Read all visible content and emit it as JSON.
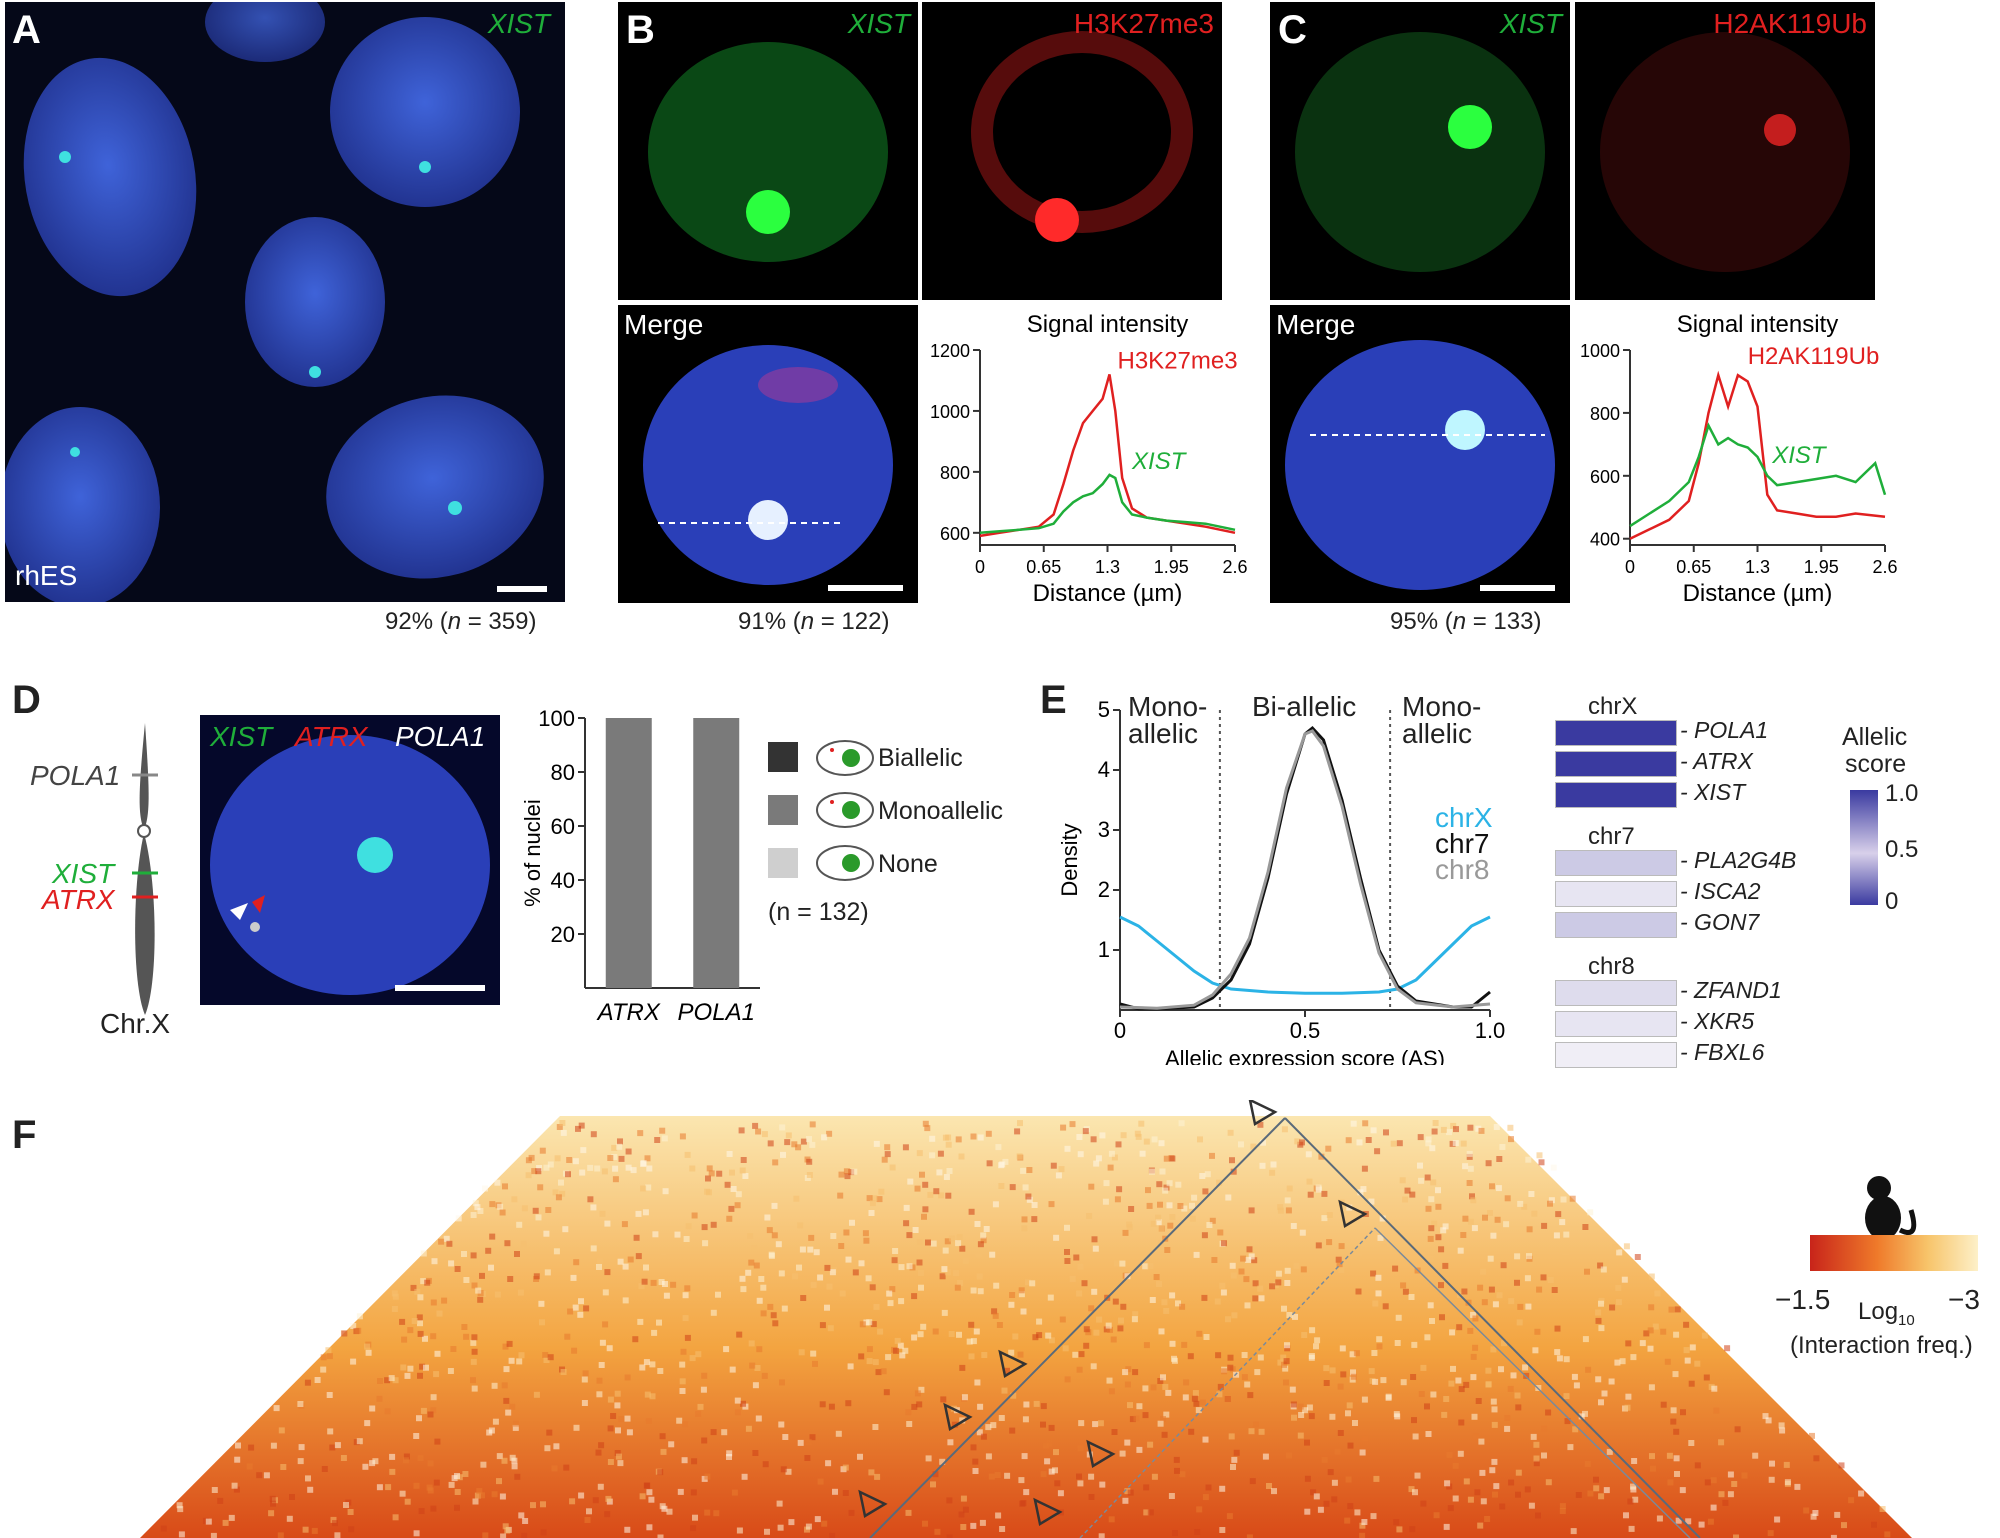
{
  "panels": {
    "A": {
      "letter": "A",
      "marker": "XIST",
      "cell_label": "rhES",
      "stat_pre": "92% (",
      "stat_n": "n",
      "stat_post": " = 359)"
    },
    "B": {
      "letter": "B",
      "marker1": "XIST",
      "marker2": "H3K27me3",
      "merge": "Merge",
      "stat_pre": "91% (",
      "stat_n": "n",
      "stat_post": " = 122)"
    },
    "C": {
      "letter": "C",
      "marker1": "XIST",
      "marker2": "H2AK119Ub",
      "merge": "Merge",
      "stat_pre": "95% (",
      "stat_n": "n",
      "stat_post": " = 133)"
    },
    "D": {
      "letter": "D",
      "genes": [
        "POLA1",
        "XIST",
        "ATRX"
      ],
      "chrom": "Chr.X",
      "fish_labels": [
        "XIST",
        "ATRX",
        "POLA1"
      ],
      "legend": [
        "Biallelic",
        "Monoallelic",
        "None"
      ],
      "legend_n": "(n = 132)"
    },
    "E": {
      "letter": "E",
      "regions": [
        "Mono-",
        "allelic",
        "Bi-allelic",
        "Mono-",
        "allelic"
      ],
      "legend_series": [
        "chrX",
        "chr7",
        "chr8"
      ],
      "colorbar_title": [
        "Allelic",
        "score"
      ],
      "colorbar_ticks": [
        "1.0",
        "0.5",
        "0"
      ]
    },
    "F": {
      "letter": "F",
      "cb_min": "−1.5",
      "cb_max": "−3",
      "cb_title": "Log",
      "cb_sub": "10",
      "cb_caption": "(Interaction freq.)"
    }
  },
  "colors": {
    "xist_green": "#1fae3a",
    "mark_red": "#e02020",
    "chrX_blue": "#2bb3e6",
    "dapi_blue": "#2a3fb8"
  },
  "chart_data": [
    {
      "id": "B-profile",
      "type": "line",
      "title": "Signal intensity",
      "xlabel": "Distance (µm)",
      "ylabel": "",
      "xlim": [
        0,
        2.6
      ],
      "ylim": [
        560,
        1200
      ],
      "xticks": [
        "0",
        "0.65",
        "1.3",
        "1.95",
        "2.6"
      ],
      "yticks": [
        "600",
        "800",
        "1000",
        "1200"
      ],
      "series": [
        {
          "name": "H3K27me3",
          "color": "#e02020",
          "x": [
            0,
            0.2,
            0.4,
            0.6,
            0.75,
            0.85,
            0.95,
            1.05,
            1.15,
            1.25,
            1.32,
            1.38,
            1.45,
            1.55,
            1.7,
            1.9,
            2.1,
            2.3,
            2.6
          ],
          "y": [
            590,
            600,
            610,
            620,
            660,
            760,
            870,
            960,
            1000,
            1040,
            1120,
            1000,
            780,
            680,
            650,
            640,
            630,
            620,
            600
          ]
        },
        {
          "name": "XIST",
          "color": "#1fae3a",
          "x": [
            0,
            0.2,
            0.4,
            0.6,
            0.75,
            0.85,
            0.95,
            1.05,
            1.15,
            1.25,
            1.32,
            1.38,
            1.45,
            1.55,
            1.7,
            1.9,
            2.1,
            2.3,
            2.6
          ],
          "y": [
            600,
            605,
            610,
            615,
            630,
            670,
            700,
            720,
            730,
            760,
            790,
            780,
            700,
            660,
            650,
            640,
            635,
            630,
            610
          ]
        }
      ]
    },
    {
      "id": "C-profile",
      "type": "line",
      "title": "Signal intensity",
      "xlabel": "Distance (µm)",
      "ylabel": "",
      "xlim": [
        0,
        2.6
      ],
      "ylim": [
        380,
        1000
      ],
      "xticks": [
        "0",
        "0.65",
        "1.3",
        "1.95",
        "2.6"
      ],
      "yticks": [
        "400",
        "600",
        "800",
        "1000"
      ],
      "series": [
        {
          "name": "H2AK119Ub",
          "color": "#e02020",
          "x": [
            0,
            0.2,
            0.4,
            0.6,
            0.7,
            0.8,
            0.9,
            1.0,
            1.1,
            1.2,
            1.3,
            1.4,
            1.5,
            1.7,
            1.9,
            2.1,
            2.3,
            2.6
          ],
          "y": [
            400,
            430,
            460,
            520,
            640,
            800,
            920,
            820,
            920,
            900,
            820,
            540,
            490,
            480,
            470,
            470,
            480,
            470
          ]
        },
        {
          "name": "XIST",
          "color": "#1fae3a",
          "x": [
            0,
            0.2,
            0.4,
            0.6,
            0.7,
            0.8,
            0.9,
            1.0,
            1.1,
            1.2,
            1.3,
            1.4,
            1.5,
            1.7,
            1.9,
            2.1,
            2.3,
            2.5,
            2.6
          ],
          "y": [
            440,
            480,
            520,
            580,
            660,
            760,
            700,
            720,
            700,
            690,
            660,
            600,
            570,
            580,
            590,
            600,
            580,
            640,
            540
          ]
        }
      ]
    },
    {
      "id": "D-bars",
      "type": "bar",
      "title": "",
      "xlabel": "",
      "ylabel": "% of nuclei",
      "categories": [
        "ATRX",
        "POLA1"
      ],
      "ylim": [
        0,
        100
      ],
      "yticks": [
        "20",
        "40",
        "60",
        "80",
        "100"
      ],
      "series": [
        {
          "name": "Monoallelic",
          "color": "#7a7a7a",
          "values": [
            100,
            100
          ]
        }
      ]
    },
    {
      "id": "E-density",
      "type": "line",
      "title": "",
      "xlabel": "Allelic expression score (AS)",
      "ylabel": "Density",
      "xlim": [
        0,
        1.0
      ],
      "ylim": [
        0,
        5
      ],
      "xticks": [
        "0",
        "0.5",
        "1.0"
      ],
      "yticks": [
        "1",
        "2",
        "3",
        "4",
        "5"
      ],
      "series": [
        {
          "name": "chrX",
          "color": "#2bb3e6",
          "x": [
            0,
            0.05,
            0.1,
            0.15,
            0.2,
            0.25,
            0.3,
            0.4,
            0.5,
            0.6,
            0.7,
            0.75,
            0.8,
            0.85,
            0.9,
            0.95,
            1.0
          ],
          "y": [
            1.55,
            1.4,
            1.15,
            0.9,
            0.65,
            0.45,
            0.35,
            0.3,
            0.28,
            0.28,
            0.3,
            0.35,
            0.5,
            0.8,
            1.1,
            1.4,
            1.55
          ]
        },
        {
          "name": "chr7",
          "color": "#111111",
          "x": [
            0,
            0.05,
            0.1,
            0.2,
            0.25,
            0.3,
            0.35,
            0.4,
            0.45,
            0.5,
            0.52,
            0.55,
            0.6,
            0.65,
            0.7,
            0.75,
            0.8,
            0.9,
            0.95,
            1.0
          ],
          "y": [
            0.1,
            0.02,
            0.02,
            0.05,
            0.2,
            0.5,
            1.1,
            2.2,
            3.6,
            4.6,
            4.7,
            4.5,
            3.5,
            2.2,
            1.0,
            0.4,
            0.15,
            0.05,
            0.05,
            0.3
          ]
        },
        {
          "name": "chr8",
          "color": "#999999",
          "x": [
            0,
            0.1,
            0.2,
            0.25,
            0.3,
            0.35,
            0.4,
            0.45,
            0.5,
            0.52,
            0.55,
            0.6,
            0.65,
            0.7,
            0.75,
            0.8,
            0.9,
            1.0
          ],
          "y": [
            0.05,
            0.03,
            0.08,
            0.25,
            0.6,
            1.2,
            2.3,
            3.7,
            4.6,
            4.65,
            4.4,
            3.4,
            2.1,
            0.95,
            0.35,
            0.12,
            0.05,
            0.1
          ]
        }
      ]
    },
    {
      "id": "E-heatmap",
      "type": "heatmap",
      "title": "",
      "xlabel": "",
      "ylabel": "",
      "groups": [
        {
          "name": "chrX",
          "genes": [
            "POLA1",
            "ATRX",
            "XIST"
          ],
          "scores": [
            1.0,
            1.0,
            1.0
          ]
        },
        {
          "name": "chr7",
          "genes": [
            "PLA2G4B",
            "ISCA2",
            "GON7"
          ],
          "scores": [
            0.2,
            0.05,
            0.2
          ]
        },
        {
          "name": "chr8",
          "genes": [
            "ZFAND1",
            "XKR5",
            "FBXL6"
          ],
          "scores": [
            0.1,
            0.05,
            0.0
          ]
        }
      ]
    }
  ]
}
